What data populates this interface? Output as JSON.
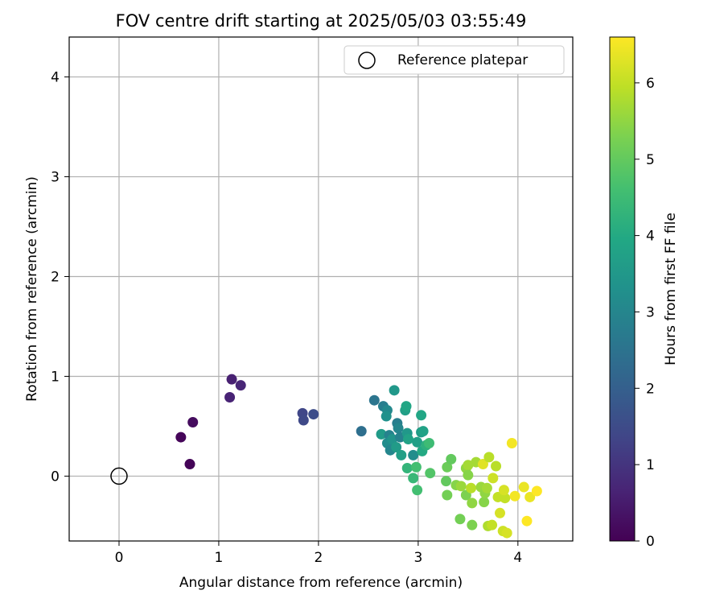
{
  "chart_data": {
    "type": "scatter",
    "title": "FOV centre drift starting at 2025/05/03 03:55:49",
    "xlabel": "Angular distance from reference (arcmin)",
    "ylabel": "Rotation from reference (arcmin)",
    "xlim": [
      -0.5,
      4.55
    ],
    "ylim": [
      -0.65,
      4.4
    ],
    "xticks": [
      0,
      1,
      2,
      3,
      4
    ],
    "yticks": [
      0,
      1,
      2,
      3,
      4
    ],
    "grid": true,
    "legend": {
      "placement": "top-right",
      "entries": [
        "Reference platepar"
      ]
    },
    "reference_point": {
      "label": "Reference platepar",
      "x": 0,
      "y": 0
    },
    "colorbar": {
      "label": "Hours from first FF file",
      "colormap": "viridis",
      "range": [
        0,
        6.6
      ],
      "ticks": [
        0,
        1,
        2,
        3,
        4,
        5,
        6
      ]
    },
    "points": [
      {
        "x": 0.62,
        "y": 0.39,
        "c": 0.1
      },
      {
        "x": 0.71,
        "y": 0.12,
        "c": 0.05
      },
      {
        "x": 0.74,
        "y": 0.54,
        "c": 0.2
      },
      {
        "x": 1.13,
        "y": 0.97,
        "c": 0.6
      },
      {
        "x": 1.11,
        "y": 0.79,
        "c": 0.65
      },
      {
        "x": 1.22,
        "y": 0.91,
        "c": 0.7
      },
      {
        "x": 1.84,
        "y": 0.63,
        "c": 1.4
      },
      {
        "x": 1.85,
        "y": 0.56,
        "c": 1.45
      },
      {
        "x": 1.95,
        "y": 0.62,
        "c": 1.55
      },
      {
        "x": 2.43,
        "y": 0.45,
        "c": 2.4
      },
      {
        "x": 2.56,
        "y": 0.76,
        "c": 2.55
      },
      {
        "x": 2.63,
        "y": 0.42,
        "c": 3.6
      },
      {
        "x": 2.65,
        "y": 0.7,
        "c": 2.8
      },
      {
        "x": 2.69,
        "y": 0.66,
        "c": 3.1
      },
      {
        "x": 2.68,
        "y": 0.6,
        "c": 3.3
      },
      {
        "x": 2.71,
        "y": 0.41,
        "c": 2.9
      },
      {
        "x": 2.69,
        "y": 0.33,
        "c": 3.2
      },
      {
        "x": 2.72,
        "y": 0.26,
        "c": 3.0
      },
      {
        "x": 2.74,
        "y": 0.37,
        "c": 3.4
      },
      {
        "x": 2.76,
        "y": 0.86,
        "c": 3.5
      },
      {
        "x": 2.78,
        "y": 0.29,
        "c": 3.6
      },
      {
        "x": 2.79,
        "y": 0.53,
        "c": 2.8
      },
      {
        "x": 2.8,
        "y": 0.48,
        "c": 3.0
      },
      {
        "x": 2.82,
        "y": 0.39,
        "c": 2.9
      },
      {
        "x": 2.83,
        "y": 0.21,
        "c": 3.7
      },
      {
        "x": 2.87,
        "y": 0.66,
        "c": 3.7
      },
      {
        "x": 2.88,
        "y": 0.7,
        "c": 3.9
      },
      {
        "x": 2.89,
        "y": 0.43,
        "c": 3.5
      },
      {
        "x": 2.9,
        "y": 0.37,
        "c": 3.8
      },
      {
        "x": 2.89,
        "y": 0.08,
        "c": 4.3
      },
      {
        "x": 2.95,
        "y": 0.21,
        "c": 3.2
      },
      {
        "x": 2.95,
        "y": -0.02,
        "c": 4.4
      },
      {
        "x": 2.98,
        "y": 0.09,
        "c": 4.6
      },
      {
        "x": 2.99,
        "y": -0.14,
        "c": 4.6
      },
      {
        "x": 2.99,
        "y": 0.34,
        "c": 3.7
      },
      {
        "x": 3.03,
        "y": 0.61,
        "c": 3.9
      },
      {
        "x": 3.03,
        "y": 0.44,
        "c": 3.6
      },
      {
        "x": 3.05,
        "y": 0.45,
        "c": 3.8
      },
      {
        "x": 3.04,
        "y": 0.25,
        "c": 4.0
      },
      {
        "x": 3.08,
        "y": 0.31,
        "c": 4.2
      },
      {
        "x": 3.11,
        "y": 0.33,
        "c": 4.5
      },
      {
        "x": 3.12,
        "y": 0.03,
        "c": 4.8
      },
      {
        "x": 3.28,
        "y": -0.05,
        "c": 5.0
      },
      {
        "x": 3.29,
        "y": 0.09,
        "c": 5.1
      },
      {
        "x": 3.29,
        "y": -0.19,
        "c": 5.2
      },
      {
        "x": 3.33,
        "y": 0.17,
        "c": 5.0
      },
      {
        "x": 3.38,
        "y": -0.09,
        "c": 5.4
      },
      {
        "x": 3.42,
        "y": -0.43,
        "c": 5.2
      },
      {
        "x": 3.43,
        "y": -0.1,
        "c": 5.6
      },
      {
        "x": 3.48,
        "y": -0.19,
        "c": 5.3
      },
      {
        "x": 3.48,
        "y": 0.08,
        "c": 5.5
      },
      {
        "x": 3.5,
        "y": 0.11,
        "c": 5.7
      },
      {
        "x": 3.5,
        "y": 0.01,
        "c": 5.4
      },
      {
        "x": 3.53,
        "y": -0.12,
        "c": 5.9
      },
      {
        "x": 3.54,
        "y": -0.27,
        "c": 5.5
      },
      {
        "x": 3.54,
        "y": -0.49,
        "c": 5.3
      },
      {
        "x": 3.58,
        "y": 0.14,
        "c": 5.7
      },
      {
        "x": 3.63,
        "y": -0.11,
        "c": 5.6
      },
      {
        "x": 3.65,
        "y": 0.12,
        "c": 6.3
      },
      {
        "x": 3.66,
        "y": -0.26,
        "c": 5.4
      },
      {
        "x": 3.67,
        "y": -0.17,
        "c": 5.5
      },
      {
        "x": 3.69,
        "y": -0.12,
        "c": 5.7
      },
      {
        "x": 3.7,
        "y": -0.5,
        "c": 5.8
      },
      {
        "x": 3.71,
        "y": 0.19,
        "c": 5.9
      },
      {
        "x": 3.74,
        "y": -0.49,
        "c": 6.0
      },
      {
        "x": 3.75,
        "y": -0.02,
        "c": 6.1
      },
      {
        "x": 3.78,
        "y": 0.1,
        "c": 5.9
      },
      {
        "x": 3.8,
        "y": -0.21,
        "c": 6.0
      },
      {
        "x": 3.82,
        "y": -0.37,
        "c": 6.2
      },
      {
        "x": 3.85,
        "y": -0.55,
        "c": 6.1
      },
      {
        "x": 3.87,
        "y": -0.22,
        "c": 6.0
      },
      {
        "x": 3.86,
        "y": -0.14,
        "c": 6.2
      },
      {
        "x": 3.89,
        "y": -0.57,
        "c": 6.2
      },
      {
        "x": 3.94,
        "y": 0.33,
        "c": 6.5
      },
      {
        "x": 3.97,
        "y": -0.2,
        "c": 6.5
      },
      {
        "x": 4.06,
        "y": -0.11,
        "c": 6.4
      },
      {
        "x": 4.09,
        "y": -0.45,
        "c": 6.6
      },
      {
        "x": 4.12,
        "y": -0.21,
        "c": 6.4
      },
      {
        "x": 4.19,
        "y": -0.15,
        "c": 6.6
      }
    ]
  }
}
